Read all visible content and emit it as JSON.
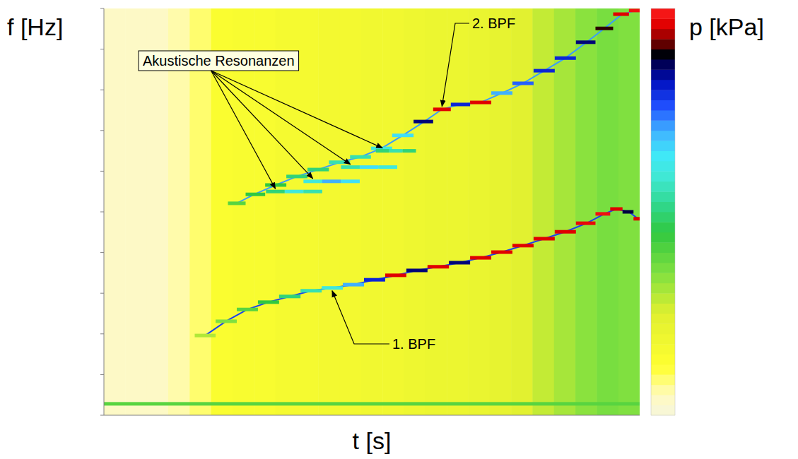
{
  "chart_data": {
    "type": "spectrogram",
    "x_label": "t [s]",
    "y_label": "f [Hz]",
    "colorbar_label": "p [kPa]",
    "xlim": [
      0,
      100
    ],
    "ylim": [
      0,
      100
    ],
    "yticks": [
      0,
      10,
      20,
      30,
      40,
      50,
      60,
      70,
      80,
      90,
      100
    ],
    "tick_labels": false,
    "clim": [
      0,
      10
    ],
    "background": {
      "bins": [
        0,
        4,
        8,
        12,
        16,
        20,
        24,
        28,
        32,
        36,
        40,
        44,
        48,
        52,
        56,
        60,
        64,
        68,
        72,
        76,
        80,
        84,
        88,
        92,
        96,
        100
      ],
      "values": [
        0.4,
        0.4,
        0.4,
        0.6,
        0.9,
        1.4,
        1.5,
        1.5,
        1.6,
        1.6,
        1.7,
        1.7,
        1.8,
        1.8,
        1.9,
        2.0,
        2.0,
        2.1,
        2.2,
        2.4,
        2.8,
        3.1,
        3.4,
        3.6,
        3.5
      ]
    },
    "series": [
      {
        "x": [
          18.9,
          22.8,
          26.8,
          30.7,
          34.7,
          38.7,
          42.6,
          46.6,
          50.5,
          54.5,
          58.4,
          62.4,
          66.4,
          70.3,
          74.3,
          78.2,
          82.2,
          86.1,
          90.1,
          93.4,
          95.6,
          98.0,
          99.7
        ],
        "y": [
          19.6,
          23.1,
          26.0,
          27.8,
          29.2,
          30.6,
          31.3,
          32.1,
          33.3,
          34.4,
          35.6,
          36.5,
          37.5,
          38.7,
          40.1,
          41.7,
          43.4,
          45.1,
          47.2,
          49.5,
          50.7,
          50.0,
          48.3
        ],
        "values": [
          3,
          3.5,
          4,
          4.5,
          5,
          5.5,
          6,
          7,
          8,
          9.6,
          8.5,
          9.6,
          8.5,
          9.6,
          9.6,
          9.6,
          9.6,
          9.6,
          9.7,
          9.8,
          9.6,
          8.7,
          9.6
        ]
      },
      {
        "x": [
          24.8,
          28.1,
          32.1,
          36.0,
          40.0,
          44.0,
          47.9,
          51.8,
          55.8,
          59.8,
          63.1,
          66.4,
          70.3,
          74.3,
          78.2,
          82.2,
          86.1,
          90.1,
          93.4,
          96.7,
          99.3
        ],
        "y": [
          52.1,
          54.3,
          56.6,
          58.7,
          60.4,
          62.2,
          63.5,
          65.6,
          68.8,
          72.2,
          75.2,
          76.4,
          76.9,
          79.2,
          81.6,
          84.7,
          87.8,
          91.7,
          95.1,
          98.6,
          99.5
        ],
        "values": [
          4,
          4.5,
          4.5,
          5,
          5,
          5.5,
          5.5,
          6,
          6.5,
          8.5,
          9.6,
          8,
          9.6,
          7,
          7.5,
          8,
          8,
          8.5,
          9,
          9.6,
          9.8
        ]
      },
      {
        "x": [
          32,
          35.5,
          39,
          null,
          39,
          42.5,
          46,
          null,
          46,
          49.5,
          53,
          null,
          52,
          54.5,
          57
        ],
        "y": [
          55,
          55,
          55,
          null,
          57.5,
          57.5,
          57.5,
          null,
          61,
          61,
          61,
          null,
          65,
          65,
          65
        ],
        "values": [
          5,
          6,
          5.5,
          null,
          6,
          7,
          6.5,
          null,
          5.5,
          6.5,
          6,
          null,
          5,
          5.5,
          5
        ]
      },
      {
        "x": [
          0,
          100
        ],
        "y": [
          2.8,
          2.8
        ],
        "values": [
          4,
          4
        ]
      }
    ],
    "annotations": [
      {
        "text": "Akustische Resonanzen",
        "x": [
          32,
          39,
          46,
          52
        ],
        "y": [
          55,
          57.5,
          61,
          65
        ]
      },
      {
        "text": "2. BPF",
        "x": 63.1,
        "y": 75.2
      },
      {
        "text": "1. BPF",
        "x": 42.6,
        "y": 31.3
      }
    ]
  }
}
